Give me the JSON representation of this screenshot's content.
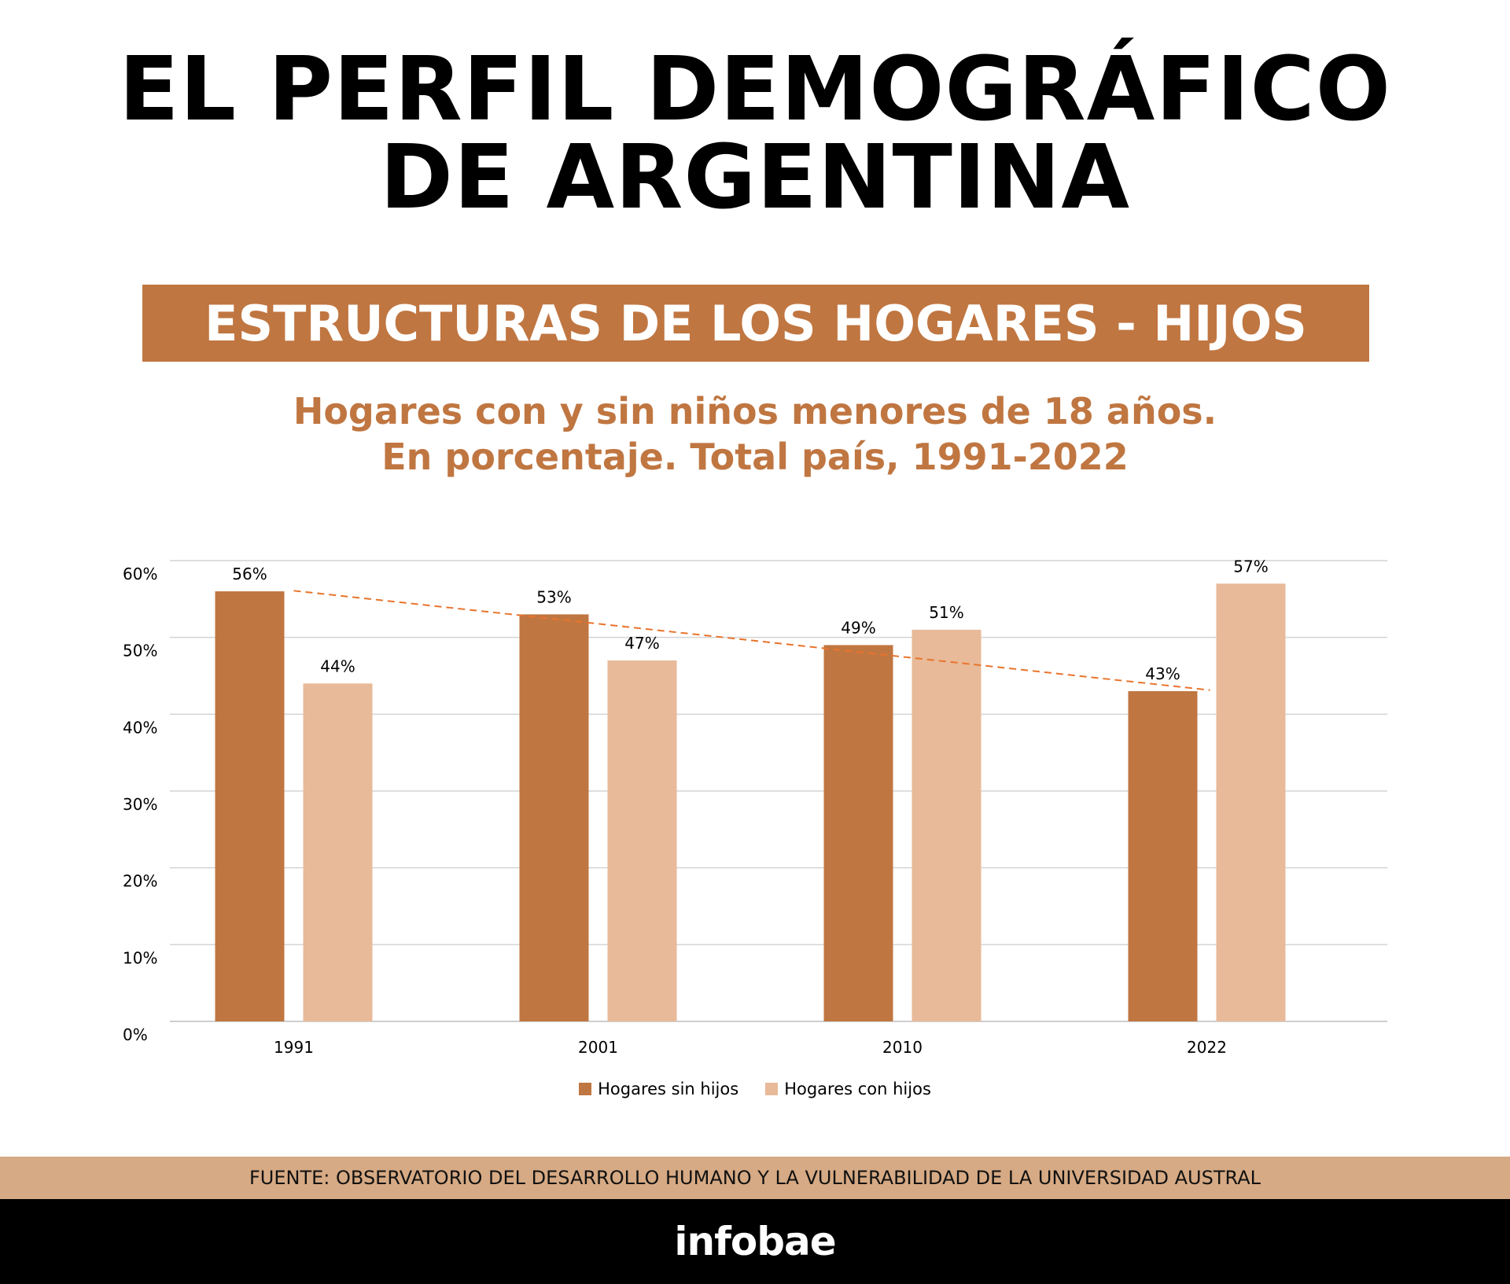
{
  "header": {
    "title_line1": "EL PERFIL DEMOGRÁFICO",
    "title_line2": "DE ARGENTINA",
    "banner": "ESTRUCTURAS DE LOS HOGARES - HIJOS",
    "subtitle_line1": "Hogares con y sin niños menores de 18 años.",
    "subtitle_line2": "En porcentaje. Total país, 1991-2022"
  },
  "colors": {
    "accent": "#c07641",
    "series_sin_hijos": "#c07641",
    "series_con_hijos": "#e8ba99",
    "trend_line": "#e8742c",
    "source_bar": "#d6aa84",
    "footer_bar": "#000000"
  },
  "chart_data": {
    "type": "bar",
    "categories": [
      "1991",
      "2001",
      "2010",
      "2022"
    ],
    "series": [
      {
        "name": "Hogares sin hijos",
        "values": [
          56,
          53,
          49,
          43
        ],
        "labels": [
          "56%",
          "53%",
          "49%",
          "43%"
        ]
      },
      {
        "name": "Hogares con hijos",
        "values": [
          44,
          47,
          51,
          57
        ],
        "labels": [
          "44%",
          "47%",
          "51%",
          "57%"
        ]
      }
    ],
    "y_ticks": [
      "0%",
      "10%",
      "20%",
      "30%",
      "40%",
      "50%",
      "60%"
    ],
    "ylim": [
      0,
      60
    ],
    "grid": true,
    "legend_position": "bottom-center",
    "trendline": {
      "series": "Hogares sin hijos",
      "style": "dashed"
    }
  },
  "source": "FUENTE: OBSERVATORIO DEL DESARROLLO HUMANO Y LA VULNERABILIDAD DE LA UNIVERSIDAD AUSTRAL",
  "footer": {
    "logo_text": "infobae"
  }
}
